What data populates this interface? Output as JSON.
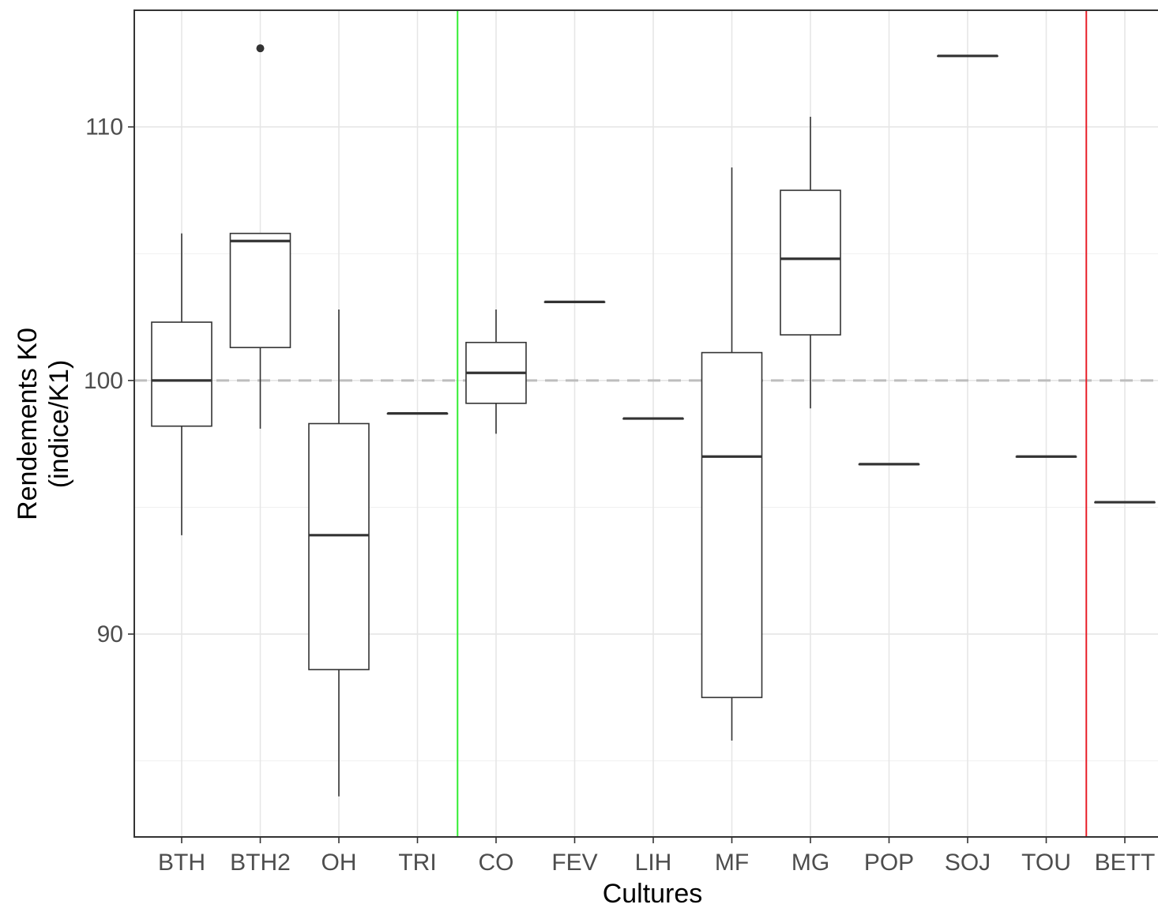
{
  "chart_data": {
    "type": "boxplot",
    "xlabel": "Cultures",
    "ylabel": [
      "Rendements K0",
      "(indice/K1)"
    ],
    "ylim": [
      82.0,
      114.6
    ],
    "yticks": [
      90,
      100,
      110
    ],
    "ytick_labels": [
      "90",
      "100",
      "110"
    ],
    "grid": true,
    "reference_line": {
      "y": 100,
      "style": "dashed",
      "color": "#bdbdbd"
    },
    "vertical_separators": [
      {
        "after_category": "TRI",
        "color": "#33ee33"
      },
      {
        "after_category": "TOU",
        "color": "#e8202a"
      }
    ],
    "categories": [
      "BTH",
      "BTH2",
      "OH",
      "TRI",
      "CO",
      "FEV",
      "LIH",
      "MF",
      "MG",
      "POP",
      "SOJ",
      "TOU",
      "BETT"
    ],
    "boxes": [
      {
        "category": "BTH",
        "whisker_low": 93.9,
        "q1": 98.2,
        "median": 100.0,
        "q3": 102.3,
        "whisker_high": 105.8,
        "outliers": []
      },
      {
        "category": "BTH2",
        "whisker_low": 98.1,
        "q1": 101.3,
        "median": 105.5,
        "q3": 105.8,
        "whisker_high": 105.8,
        "outliers": [
          113.1
        ]
      },
      {
        "category": "OH",
        "whisker_low": 83.6,
        "q1": 88.6,
        "median": 93.9,
        "q3": 98.3,
        "whisker_high": 102.8,
        "outliers": []
      },
      {
        "category": "TRI",
        "whisker_low": 98.7,
        "q1": 98.7,
        "median": 98.7,
        "q3": 98.7,
        "whisker_high": 98.7,
        "outliers": []
      },
      {
        "category": "CO",
        "whisker_low": 97.9,
        "q1": 99.1,
        "median": 100.3,
        "q3": 101.5,
        "whisker_high": 102.8,
        "outliers": []
      },
      {
        "category": "FEV",
        "whisker_low": 103.1,
        "q1": 103.1,
        "median": 103.1,
        "q3": 103.1,
        "whisker_high": 103.1,
        "outliers": []
      },
      {
        "category": "LIH",
        "whisker_low": 98.5,
        "q1": 98.5,
        "median": 98.5,
        "q3": 98.5,
        "whisker_high": 98.5,
        "outliers": []
      },
      {
        "category": "MF",
        "whisker_low": 85.8,
        "q1": 87.5,
        "median": 97.0,
        "q3": 101.1,
        "whisker_high": 108.4,
        "outliers": []
      },
      {
        "category": "MG",
        "whisker_low": 98.9,
        "q1": 101.8,
        "median": 104.8,
        "q3": 107.5,
        "whisker_high": 110.4,
        "outliers": []
      },
      {
        "category": "POP",
        "whisker_low": 96.7,
        "q1": 96.7,
        "median": 96.7,
        "q3": 96.7,
        "whisker_high": 96.7,
        "outliers": []
      },
      {
        "category": "SOJ",
        "whisker_low": 112.8,
        "q1": 112.8,
        "median": 112.8,
        "q3": 112.8,
        "whisker_high": 112.8,
        "outliers": []
      },
      {
        "category": "TOU",
        "whisker_low": 97.0,
        "q1": 97.0,
        "median": 97.0,
        "q3": 97.0,
        "whisker_high": 97.0,
        "outliers": []
      },
      {
        "category": "BETT",
        "whisker_low": 95.2,
        "q1": 95.2,
        "median": 95.2,
        "q3": 95.2,
        "whisker_high": 95.2,
        "outliers": []
      }
    ]
  }
}
